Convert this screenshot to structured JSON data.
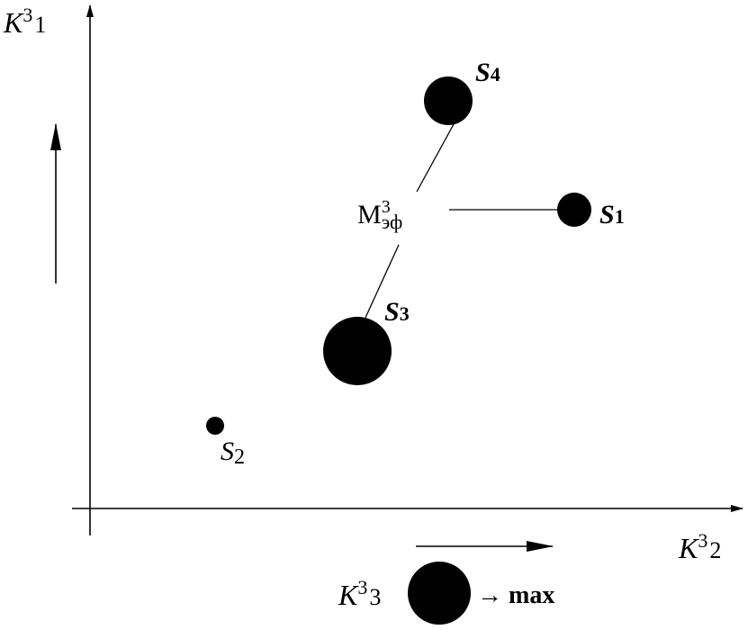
{
  "axes": {
    "y_label": {
      "base": "K",
      "sup": "3",
      "sub": "1"
    },
    "x_label": {
      "base": "K",
      "sup": "3",
      "sub": "2"
    },
    "size_label": {
      "base": "K",
      "sup": "3",
      "sub": "3"
    },
    "size_goal": "→ max"
  },
  "center_label": {
    "base": "М",
    "sup": "3",
    "sub": "эф"
  },
  "points": [
    {
      "name": "S",
      "index": "4",
      "bold": true
    },
    {
      "name": "S",
      "index": "1",
      "bold": true
    },
    {
      "name": "S",
      "index": "3",
      "bold": true
    },
    {
      "name": "S",
      "index": "2",
      "bold": false
    }
  ],
  "colors": {
    "ink": "#000000",
    "background": "#ffffff"
  }
}
